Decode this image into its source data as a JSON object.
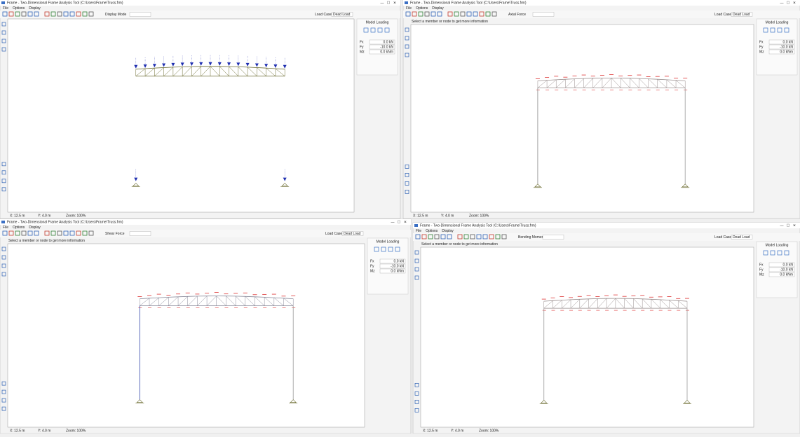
{
  "windows": [
    {
      "title": "Frame - Two-Dimensional Frame Analysis Tool (C:\\Users\\Frame\\Truss.frm)",
      "menu": [
        "File",
        "Options",
        "Display"
      ],
      "load_case_label": "Load Case",
      "load_case": "Dead Load",
      "toolbar_label": "Display Mode",
      "panel_title": "Model Loading",
      "panel_fields": [
        {
          "label": "Fx",
          "value": "0.0 kN"
        },
        {
          "label": "Fy",
          "value": "-10.0 kN"
        },
        {
          "label": "Mz",
          "value": "0.0 kNm"
        }
      ],
      "status": [
        "X: 12.5 m",
        "Y: 4.0 m",
        "Zoom: 100%"
      ]
    },
    {
      "title": "Frame - Two-Dimensional Frame Analysis Tool (C:\\Users\\Frame\\Truss.frm)",
      "menu": [
        "File",
        "Options",
        "Display"
      ],
      "load_case_label": "Load Case",
      "load_case": "Dead Load",
      "toolbar_label": "Axial Force",
      "message": "Select a member or node to get more information",
      "panel_title": "Model Loading",
      "panel_fields": [
        {
          "label": "Fx",
          "value": "0.0 kN"
        },
        {
          "label": "Fy",
          "value": "-10.0 kN"
        },
        {
          "label": "Mz",
          "value": "0.0 kNm"
        }
      ],
      "status": [
        "X: 12.5 m",
        "Y: 4.0 m",
        "Zoom: 100%"
      ]
    },
    {
      "title": "Frame - Two-Dimensional Frame Analysis Tool (C:\\Users\\Frame\\Truss.frm)",
      "menu": [
        "File",
        "Options",
        "Display"
      ],
      "load_case_label": "Load Case",
      "load_case": "Dead Load",
      "toolbar_label": "Shear Force",
      "message": "Select a member or node to get more information",
      "panel_title": "Model Loading",
      "panel_fields": [
        {
          "label": "Fx",
          "value": "0.0 kN"
        },
        {
          "label": "Fy",
          "value": "-10.0 kN"
        },
        {
          "label": "Mz",
          "value": "0.0 kNm"
        }
      ],
      "status": [
        "X: 12.5 m",
        "Y: 4.0 m",
        "Zoom: 100%"
      ]
    },
    {
      "title": "Frame - Two-Dimensional Frame Analysis Tool (C:\\Users\\Frame\\Truss.frm)",
      "menu": [
        "File",
        "Options",
        "Display"
      ],
      "load_case_label": "Load Case",
      "load_case": "Dead Load",
      "toolbar_label": "Bending Moment",
      "message": "Select a member or node to get more information",
      "panel_title": "Model Loading",
      "panel_fields": [
        {
          "label": "Fx",
          "value": "0.0 kN"
        },
        {
          "label": "Fy",
          "value": "-10.0 kN"
        },
        {
          "label": "Mz",
          "value": "0.0 kNm"
        }
      ],
      "status": [
        "X: 12.5 m",
        "Y: 4.0 m",
        "Zoom: 100%"
      ]
    }
  ]
}
